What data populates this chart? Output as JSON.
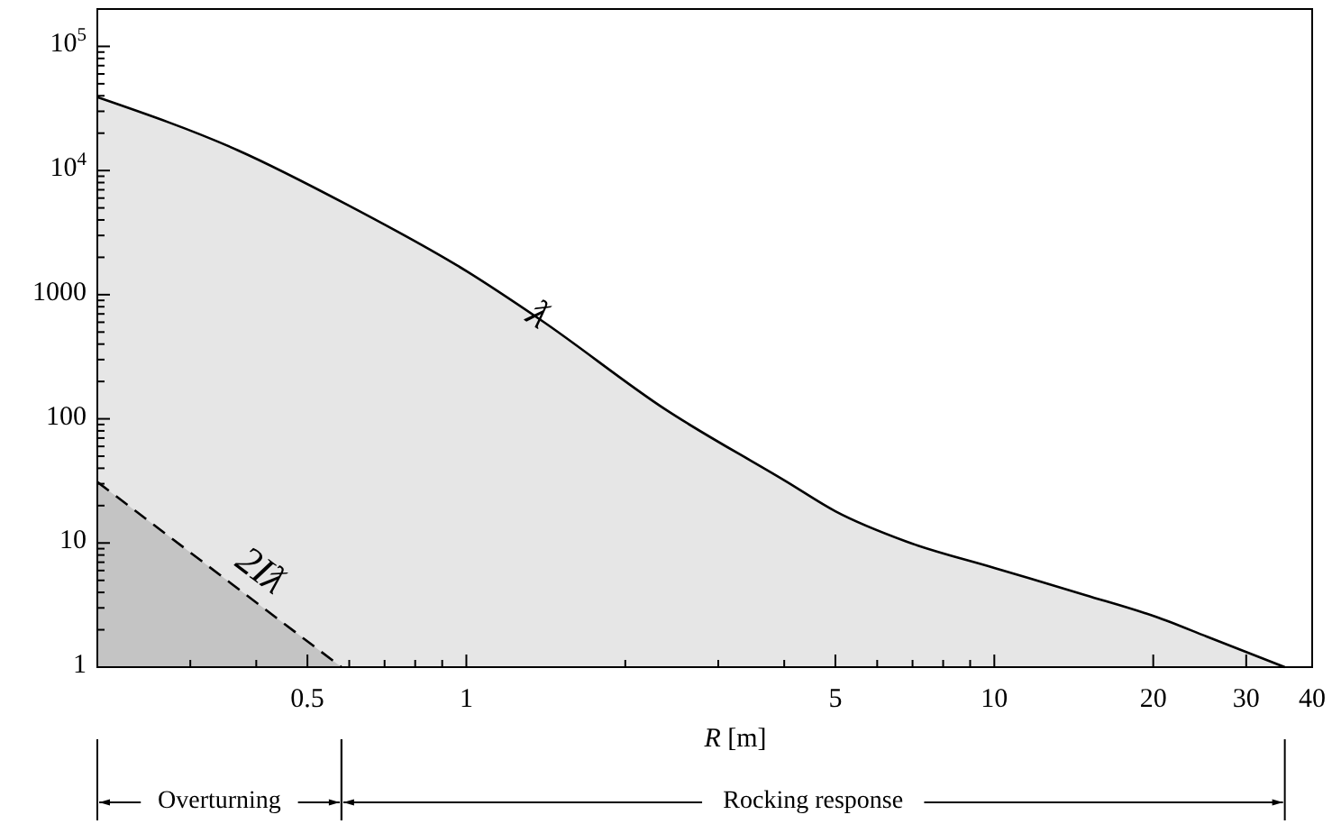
{
  "chart_data": {
    "type": "area",
    "xlabel": "R [m]",
    "log": "xy",
    "grid": false,
    "xlim": [
      0.2,
      40
    ],
    "ylim": [
      1,
      200000
    ],
    "xticks": [
      {
        "value": 0.3,
        "label": null
      },
      {
        "value": 0.4,
        "label": null
      },
      0.5,
      {
        "value": 0.6,
        "label": null
      },
      {
        "value": 0.7,
        "label": null
      },
      {
        "value": 0.8,
        "label": null
      },
      {
        "value": 0.9,
        "label": null
      },
      1,
      {
        "value": 2,
        "label": null
      },
      {
        "value": 3,
        "label": null
      },
      {
        "value": 4,
        "label": null
      },
      5,
      {
        "value": 6,
        "label": null
      },
      {
        "value": 7,
        "label": null
      },
      {
        "value": 8,
        "label": null
      },
      {
        "value": 9,
        "label": null
      },
      10,
      20,
      30,
      40
    ],
    "yticks": [
      1,
      {
        "value": 2,
        "label": null
      },
      {
        "value": 3,
        "label": null
      },
      {
        "value": 4,
        "label": null
      },
      {
        "value": 5,
        "label": null
      },
      {
        "value": 6,
        "label": null
      },
      {
        "value": 7,
        "label": null
      },
      {
        "value": 8,
        "label": null
      },
      {
        "value": 9,
        "label": null
      },
      10,
      {
        "value": 20,
        "label": null
      },
      {
        "value": 30,
        "label": null
      },
      {
        "value": 40,
        "label": null
      },
      {
        "value": 50,
        "label": null
      },
      {
        "value": 60,
        "label": null
      },
      {
        "value": 70,
        "label": null
      },
      {
        "value": 80,
        "label": null
      },
      {
        "value": 90,
        "label": null
      },
      100,
      {
        "value": 200,
        "label": null
      },
      {
        "value": 300,
        "label": null
      },
      {
        "value": 400,
        "label": null
      },
      {
        "value": 500,
        "label": null
      },
      {
        "value": 600,
        "label": null
      },
      {
        "value": 700,
        "label": null
      },
      {
        "value": 800,
        "label": null
      },
      {
        "value": 900,
        "label": null
      },
      1000,
      {
        "value": 2000,
        "label": null
      },
      {
        "value": 3000,
        "label": null
      },
      {
        "value": 4000,
        "label": null
      },
      {
        "value": 5000,
        "label": null
      },
      {
        "value": 6000,
        "label": null
      },
      {
        "value": 7000,
        "label": null
      },
      {
        "value": 8000,
        "label": null
      },
      {
        "value": 9000,
        "label": null
      },
      {
        "value": 10000,
        "label": "10$^{4}$"
      },
      {
        "value": 20000,
        "label": null
      },
      {
        "value": 30000,
        "label": null
      },
      {
        "value": 40000,
        "label": null
      },
      {
        "value": 50000,
        "label": null
      },
      {
        "value": 60000,
        "label": null
      },
      {
        "value": 70000,
        "label": null
      },
      {
        "value": 80000,
        "label": null
      },
      {
        "value": 90000,
        "label": null
      },
      {
        "value": 100000,
        "label": "10$^{5}$"
      },
      {
        "value": 200000,
        "label": null
      }
    ],
    "series": [
      {
        "name": "ƛ",
        "color": "#e6e6e6",
        "line_style": "solid",
        "x": [
          0.2,
          0.37,
          0.595,
          1,
          1.38,
          2.39,
          4.05,
          5,
          6.8,
          10,
          14.9,
          20.2,
          25.3,
          35.5
        ],
        "values": [
          39000,
          14500,
          5300,
          1550,
          630,
          118,
          31,
          18,
          10.3,
          6.3,
          3.8,
          2.55,
          1.76,
          1
        ]
      },
      {
        "name": "2Iƛ",
        "color": "#c4c4c4",
        "line_style": "dashed",
        "x": [
          0.2,
          0.58
        ],
        "values": [
          31,
          1
        ]
      }
    ],
    "annotations": [
      "Overturning",
      "Rocking response"
    ]
  }
}
